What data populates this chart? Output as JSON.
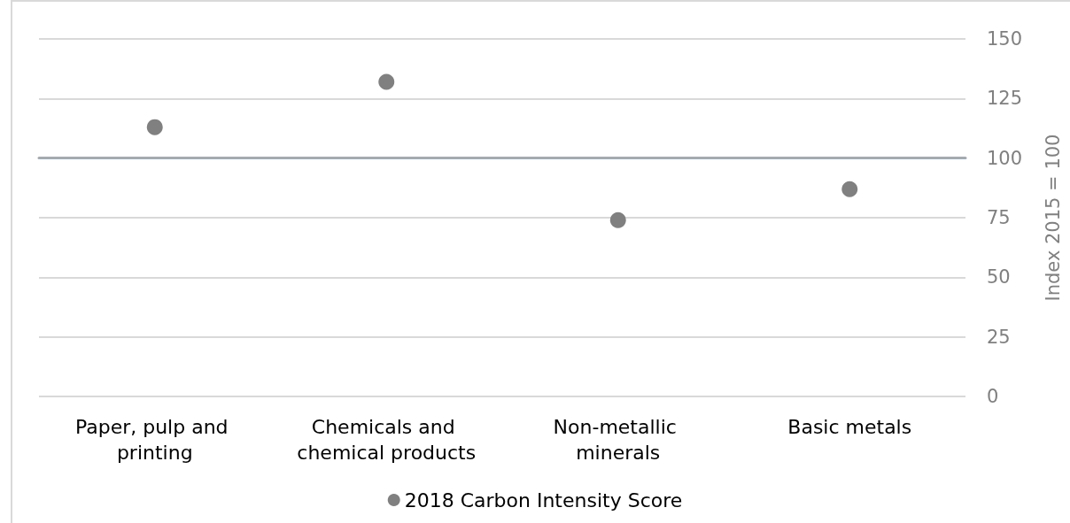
{
  "chart_data": {
    "type": "scatter",
    "ylabel": "Index 2015 = 100",
    "categories": [
      "Paper, pulp and printing",
      "Chemicals and chemical products",
      "Non-metallic minerals",
      "Basic metals"
    ],
    "series": [
      {
        "name": "2018 Carbon Intensity Score",
        "color": "#808080",
        "values": [
          113,
          132,
          74,
          87
        ]
      }
    ],
    "ylim": [
      0,
      150
    ],
    "yticks": [
      0,
      25,
      50,
      75,
      100,
      125,
      150
    ],
    "grid": "y",
    "legend": "bottom",
    "marker": "circle",
    "ref_lines": [
      {
        "axis": "y",
        "value": 100,
        "color": "#a3abb2"
      }
    ]
  }
}
